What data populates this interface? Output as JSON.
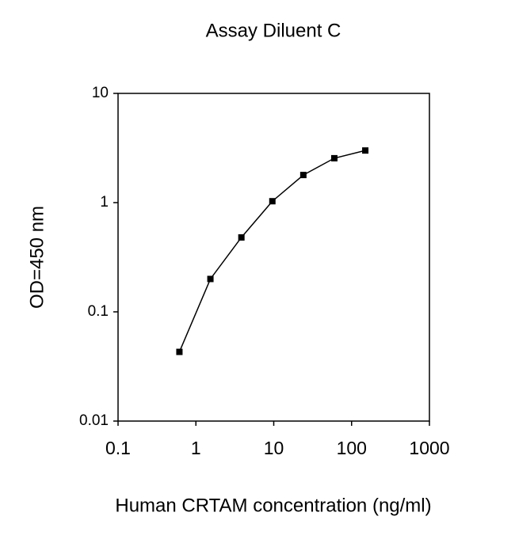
{
  "chart_data": {
    "type": "line",
    "title": "Assay Diluent C",
    "x_label": "Human CRTAM concentration (ng/ml)",
    "y_label": "OD=450 nm",
    "series": [
      {
        "name": "Assay Diluent C",
        "color": "#000000",
        "x": [
          0.614,
          1.536,
          3.84,
          9.6,
          24,
          60,
          150
        ],
        "values": [
          0.043,
          0.2,
          0.48,
          1.03,
          1.79,
          2.55,
          3.0
        ]
      }
    ],
    "xlim": [
      0.1,
      1000
    ],
    "xticks": [
      0.1,
      1,
      10,
      100,
      1000
    ],
    "ylim": [
      0.01,
      10
    ],
    "yticks": [
      0.01,
      0.1,
      1,
      10
    ],
    "x_log": true,
    "y_log": true,
    "grid": false
  }
}
